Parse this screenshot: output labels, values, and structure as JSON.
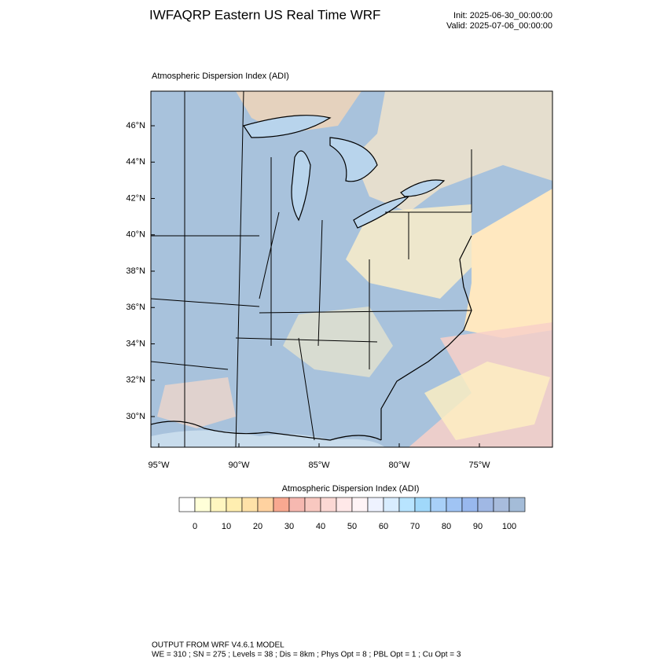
{
  "header": {
    "title": "IWFAQRP Eastern US Real Time WRF",
    "init": "Init: 2025-06-30_00:00:00",
    "valid": "Valid: 2025-07-06_00:00:00"
  },
  "map": {
    "title": "Atmospheric Dispersion Index   (ADI)",
    "lat_labels": [
      "46°N",
      "44°N",
      "42°N",
      "40°N",
      "38°N",
      "36°N",
      "34°N",
      "32°N",
      "30°N"
    ],
    "lon_labels": [
      "95°W",
      "90°W",
      "85°W",
      "80°W",
      "75°W"
    ]
  },
  "colorbar": {
    "title": "Atmospheric Dispersion Index  (ADI)",
    "ticks": [
      0,
      10,
      20,
      30,
      40,
      50,
      60,
      70,
      80,
      90,
      100
    ],
    "colors": [
      "#ffffff",
      "#ffffd8",
      "#fff6c0",
      "#ffeeb0",
      "#ffe2a8",
      "#ffd2a0",
      "#f8a890",
      "#f6b8b0",
      "#f8c8c0",
      "#fcd8d4",
      "#ffe8e8",
      "#fff4f6",
      "#eef2ff",
      "#d8ecff",
      "#b8e4ff",
      "#a0d8fa",
      "#a8d0f8",
      "#a0c4f4",
      "#98b8ee",
      "#a0b8e4",
      "#a8bcdc",
      "#a4bcd8"
    ]
  },
  "footer": {
    "line1": "OUTPUT FROM WRF V4.6.1 MODEL",
    "line2": "WE = 310 ; SN = 275 ; Levels = 38 ; Dis = 8km ; Phys Opt = 8 ; PBL Opt = 1 ; Cu Opt = 3"
  }
}
